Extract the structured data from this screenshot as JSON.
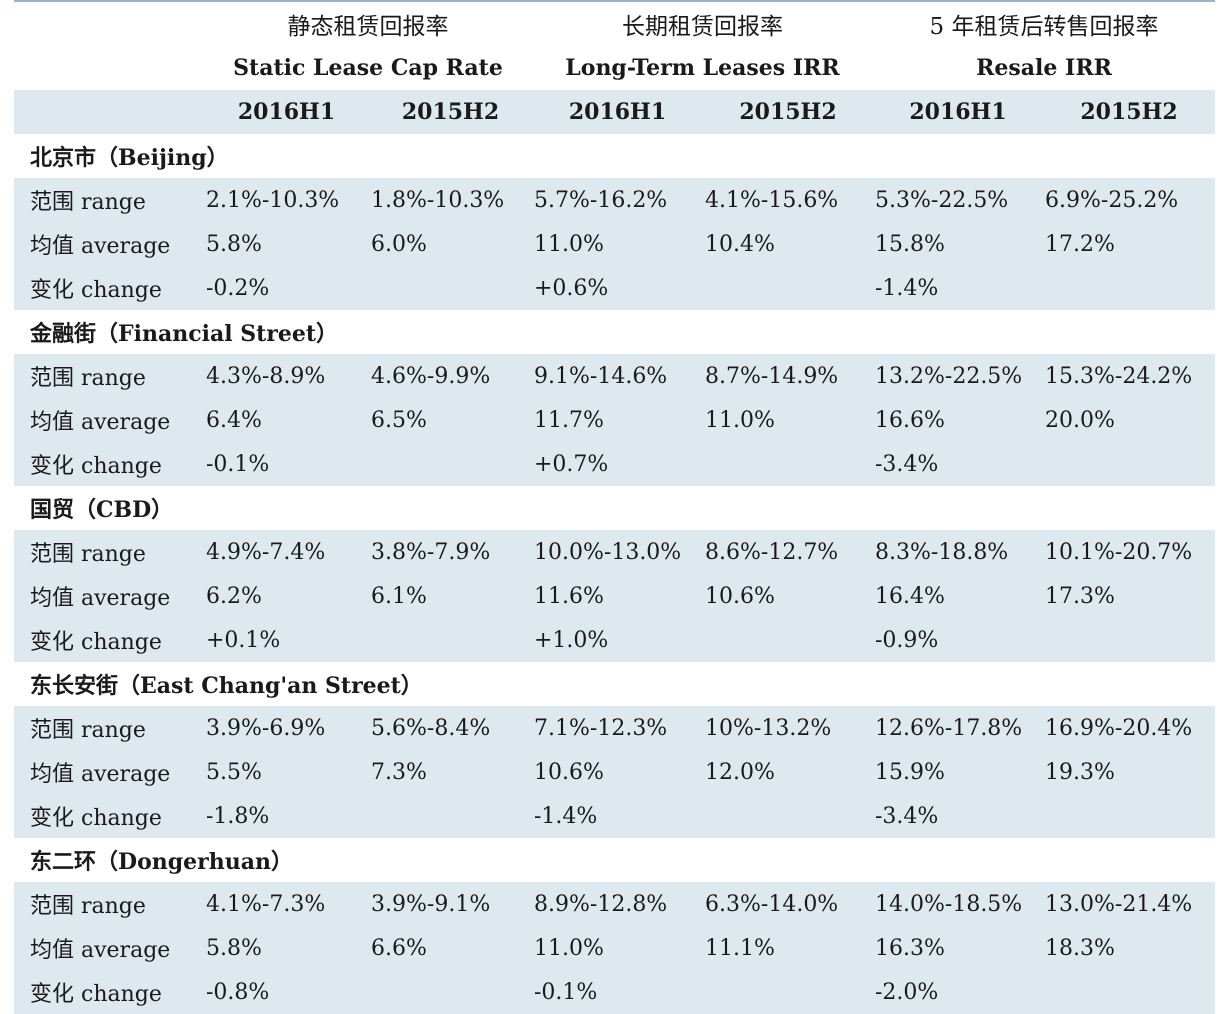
{
  "header": {
    "groups_cn": [
      "静态租赁回报率",
      "长期租赁回报率",
      "5 年租赁后转售回报率"
    ],
    "groups_en": [
      "Static Lease Cap Rate",
      "Long-Term Leases IRR",
      "Resale IRR"
    ],
    "periods": [
      "2016H1",
      "2015H2",
      "2016H1",
      "2015H2",
      "2016H1",
      "2015H2"
    ]
  },
  "sections": [
    {
      "title": "北京市（Beijing）",
      "rows": [
        {
          "label": "范围 range",
          "values": [
            "2.1%-10.3%",
            "1.8%-10.3%",
            "5.7%-16.2%",
            "4.1%-15.6%",
            "5.3%-22.5%",
            "6.9%-25.2%"
          ]
        },
        {
          "label": "均值 average",
          "values": [
            "5.8%",
            "6.0%",
            "11.0%",
            "10.4%",
            "15.8%",
            "17.2%"
          ]
        },
        {
          "label": "变化 change",
          "values": [
            "-0.2%",
            "",
            "+0.6%",
            "",
            "-1.4%",
            ""
          ]
        }
      ]
    },
    {
      "title": "金融街（Financial Street）",
      "rows": [
        {
          "label": "范围 range",
          "values": [
            "4.3%-8.9%",
            "4.6%-9.9%",
            "9.1%-14.6%",
            "8.7%-14.9%",
            "13.2%-22.5%",
            "15.3%-24.2%"
          ]
        },
        {
          "label": "均值 average",
          "values": [
            "6.4%",
            "6.5%",
            "11.7%",
            "11.0%",
            "16.6%",
            "20.0%"
          ]
        },
        {
          "label": "变化 change",
          "values": [
            "-0.1%",
            "",
            "+0.7%",
            "",
            "-3.4%",
            ""
          ]
        }
      ]
    },
    {
      "title": "国贸（CBD）",
      "rows": [
        {
          "label": "范围 range",
          "values": [
            "4.9%-7.4%",
            "3.8%-7.9%",
            "10.0%-13.0%",
            "8.6%-12.7%",
            "8.3%-18.8%",
            "10.1%-20.7%"
          ]
        },
        {
          "label": "均值 average",
          "values": [
            "6.2%",
            "6.1%",
            "11.6%",
            "10.6%",
            "16.4%",
            "17.3%"
          ]
        },
        {
          "label": "变化 change",
          "values": [
            "+0.1%",
            "",
            "+1.0%",
            "",
            "-0.9%",
            ""
          ]
        }
      ]
    },
    {
      "title": "东长安街（East Chang'an Street）",
      "rows": [
        {
          "label": "范围 range",
          "values": [
            "3.9%-6.9%",
            "5.6%-8.4%",
            "7.1%-12.3%",
            "10%-13.2%",
            "12.6%-17.8%",
            "16.9%-20.4%"
          ]
        },
        {
          "label": "均值 average",
          "values": [
            "5.5%",
            "7.3%",
            "10.6%",
            "12.0%",
            "15.9%",
            "19.3%"
          ]
        },
        {
          "label": "变化 change",
          "values": [
            "-1.8%",
            "",
            "-1.4%",
            "",
            "-3.4%",
            ""
          ]
        }
      ]
    },
    {
      "title": "东二环（Dongerhuan）",
      "rows": [
        {
          "label": "范围 range",
          "values": [
            "4.1%-7.3%",
            "3.9%-9.1%",
            "8.9%-12.8%",
            "6.3%-14.0%",
            "14.0%-18.5%",
            "13.0%-21.4%"
          ]
        },
        {
          "label": "均值 average",
          "values": [
            "5.8%",
            "6.6%",
            "11.0%",
            "11.1%",
            "16.3%",
            "18.3%"
          ]
        },
        {
          "label": "变化 change",
          "values": [
            "-0.8%",
            "",
            "-0.1%",
            "",
            "-2.0%",
            ""
          ]
        }
      ]
    }
  ]
}
